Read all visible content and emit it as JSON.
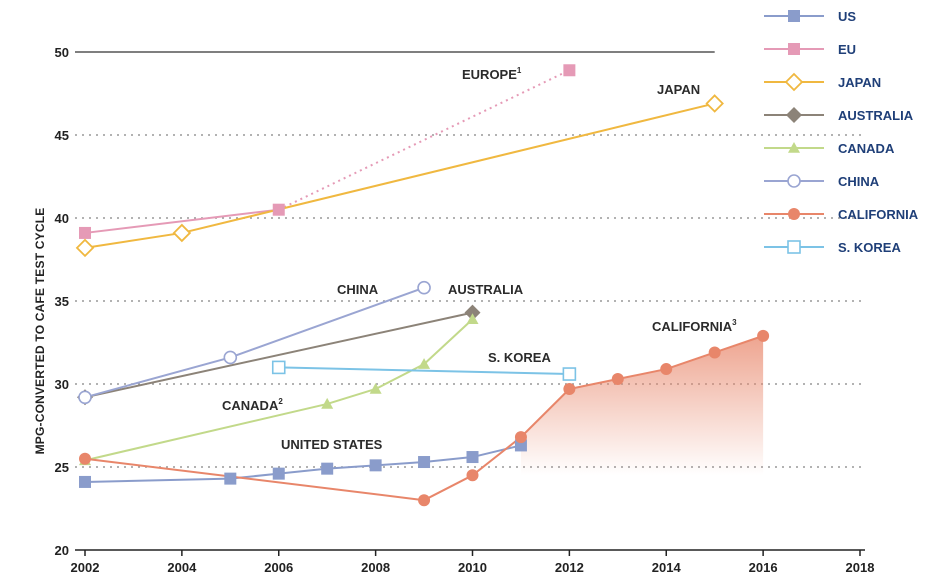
{
  "chart_data": {
    "type": "line",
    "ylabel": "MPG-CONVERTED TO CAFE TEST CYCLE",
    "xlim": [
      2002,
      2018
    ],
    "ylim": [
      20,
      50
    ],
    "x_ticks": [
      "2002",
      "2004",
      "2006",
      "2008",
      "2010",
      "2012",
      "2014",
      "2016",
      "2018"
    ],
    "y_ticks": [
      "20",
      "25",
      "30",
      "35",
      "40",
      "45",
      "50"
    ],
    "grid": "dotted horizontal gridlines at 25, 30, 35, 40, 45; solid line at 50",
    "legend_position": "top-right",
    "series": [
      {
        "name": "US",
        "color": "#8a9ccb",
        "marker": "square-filled",
        "x": [
          2002,
          2005,
          2006,
          2007,
          2008,
          2009,
          2010,
          2011
        ],
        "y": [
          24.1,
          24.3,
          24.6,
          24.9,
          25.1,
          25.3,
          25.6,
          26.3
        ]
      },
      {
        "name": "EU",
        "color": "#e59ab6",
        "marker": "square-filled",
        "x": [
          2002,
          2006,
          2012
        ],
        "y": [
          39.1,
          40.5,
          48.9
        ],
        "dotted_from_index": 1
      },
      {
        "name": "JAPAN",
        "color": "#f0b840",
        "marker": "diamond-open",
        "x": [
          2002,
          2004,
          2015
        ],
        "y": [
          38.2,
          39.1,
          46.9
        ]
      },
      {
        "name": "AUSTRALIA",
        "color": "#8c8378",
        "marker": "diamond-filled",
        "x": [
          2002,
          2010
        ],
        "y": [
          29.2,
          34.3
        ]
      },
      {
        "name": "CANADA",
        "color": "#c2d98a",
        "marker": "triangle-filled",
        "x": [
          2002,
          2007,
          2008,
          2009,
          2010
        ],
        "y": [
          25.4,
          28.8,
          29.7,
          31.2,
          33.9
        ]
      },
      {
        "name": "CHINA",
        "color": "#9aa5d2",
        "marker": "circle-open",
        "x": [
          2002,
          2005,
          2009
        ],
        "y": [
          29.2,
          31.6,
          35.8
        ]
      },
      {
        "name": "CALIFORNIA",
        "color": "#e8866a",
        "marker": "circle-filled",
        "x": [
          2002,
          2009,
          2010,
          2011,
          2012,
          2013,
          2014,
          2015,
          2016
        ],
        "y": [
          25.5,
          23.0,
          24.5,
          26.8,
          29.7,
          30.3,
          30.9,
          31.9,
          32.9
        ],
        "shaded_area_from": 2011
      },
      {
        "name": "S. KOREA",
        "color": "#7cc3e6",
        "marker": "square-open",
        "x": [
          2006,
          2012
        ],
        "y": [
          31.0,
          30.6
        ]
      }
    ],
    "annotations": [
      {
        "id": "europe",
        "text": "EUROPE",
        "sup": "1"
      },
      {
        "id": "japan",
        "text": "JAPAN",
        "sup": ""
      },
      {
        "id": "china",
        "text": "CHINA",
        "sup": ""
      },
      {
        "id": "australia",
        "text": "AUSTRALIA",
        "sup": ""
      },
      {
        "id": "california",
        "text": "CALIFORNIA",
        "sup": "3"
      },
      {
        "id": "skorea",
        "text": "S. KOREA",
        "sup": ""
      },
      {
        "id": "canada",
        "text": "CANADA",
        "sup": "2"
      },
      {
        "id": "us",
        "text": "UNITED STATES",
        "sup": ""
      }
    ]
  }
}
